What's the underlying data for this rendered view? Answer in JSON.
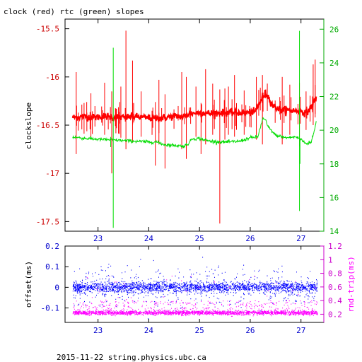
{
  "title": "clock (red) rtc (green) slopes",
  "footer": "2015-11-22 string.physics.ubc.ca",
  "colors": {
    "clock": "#ff0000",
    "rtc": "#00dd00",
    "offset": "#0000ff",
    "rndtrip": "#ff00ff",
    "axis_black": "#000000",
    "axis_red": "#cc0000",
    "axis_green": "#00aa00",
    "axis_blue": "#0000cc",
    "axis_magenta": "#cc00cc"
  },
  "chart_data": [
    {
      "type": "line",
      "title": "clock (red) rtc (green) slopes",
      "xlabel": "",
      "ylabel": "clockslope",
      "y2label": "",
      "xlim": [
        22.35,
        27.45
      ],
      "ylim": [
        -17.6,
        -15.4
      ],
      "y2lim": [
        14,
        26.6
      ],
      "x_ticks": [
        23,
        24,
        25,
        26,
        27
      ],
      "y_ticks": [
        -15.5,
        -16,
        -16.5,
        -17,
        -17.5
      ],
      "y2_ticks": [
        14,
        16,
        18,
        20,
        22,
        24,
        26
      ],
      "grid": false,
      "series": [
        {
          "axis": "left",
          "points": [
            [
              22.5,
              -16.42
            ],
            [
              22.7,
              -16.41
            ],
            [
              22.9,
              -16.42
            ],
            [
              23.1,
              -16.41
            ],
            [
              23.3,
              -16.42
            ],
            [
              23.5,
              -16.42
            ],
            [
              23.7,
              -16.41
            ],
            [
              23.9,
              -16.42
            ],
            [
              24.1,
              -16.43
            ],
            [
              24.3,
              -16.42
            ],
            [
              24.5,
              -16.41
            ],
            [
              24.7,
              -16.41
            ],
            [
              24.8,
              -16.38
            ],
            [
              25.0,
              -16.37
            ],
            [
              25.2,
              -16.38
            ],
            [
              25.4,
              -16.37
            ],
            [
              25.6,
              -16.37
            ],
            [
              25.8,
              -16.37
            ],
            [
              26.0,
              -16.37
            ],
            [
              26.1,
              -16.36
            ],
            [
              26.2,
              -16.25
            ],
            [
              26.3,
              -16.17
            ],
            [
              26.35,
              -16.2
            ],
            [
              26.45,
              -16.3
            ],
            [
              26.6,
              -16.34
            ],
            [
              26.8,
              -16.35
            ],
            [
              27.0,
              -16.35
            ],
            [
              27.1,
              -16.38
            ],
            [
              27.2,
              -16.31
            ],
            [
              27.3,
              -16.22
            ]
          ],
          "spikes": [
            [
              22.57,
              -15.95,
              -16.8
            ],
            [
              22.86,
              -16.17,
              -16.62
            ],
            [
              23.13,
              -16.06,
              -16.6
            ],
            [
              23.27,
              -16.15,
              -17.0
            ],
            [
              23.45,
              -16.1,
              -16.63
            ],
            [
              23.55,
              -15.52,
              -16.75
            ],
            [
              23.68,
              -15.83,
              -16.68
            ],
            [
              23.85,
              -16.15,
              -16.62
            ],
            [
              24.13,
              -16.26,
              -16.92
            ],
            [
              24.2,
              -16.03,
              -16.7
            ],
            [
              24.32,
              -16.18,
              -16.95
            ],
            [
              24.65,
              -15.95,
              -16.75
            ],
            [
              24.74,
              -16.0,
              -16.85
            ],
            [
              24.93,
              -16.1,
              -16.62
            ],
            [
              25.03,
              -16.27,
              -16.8
            ],
            [
              25.12,
              -15.92,
              -16.7
            ],
            [
              25.26,
              -16.07,
              -16.6
            ],
            [
              25.4,
              -16.13,
              -17.52
            ],
            [
              25.5,
              -16.12,
              -16.65
            ],
            [
              25.57,
              -16.1,
              -16.6
            ],
            [
              25.69,
              -15.98,
              -16.62
            ],
            [
              25.88,
              -16.14,
              -16.6
            ],
            [
              26.12,
              -16.0,
              -16.65
            ],
            [
              26.24,
              -15.98,
              -16.7
            ],
            [
              26.63,
              -16.0,
              -16.7
            ],
            [
              26.78,
              -16.08,
              -16.6
            ],
            [
              26.97,
              -16.06,
              -16.72
            ],
            [
              27.1,
              -16.15,
              -16.55
            ],
            [
              27.24,
              -15.87,
              -16.5
            ],
            [
              27.28,
              -15.82,
              -16.42
            ]
          ]
        },
        {
          "axis": "right",
          "points": [
            [
              22.5,
              19.6
            ],
            [
              22.8,
              19.5
            ],
            [
              23.1,
              19.45
            ],
            [
              23.4,
              19.4
            ],
            [
              23.7,
              19.35
            ],
            [
              24.0,
              19.3
            ],
            [
              24.15,
              19.3
            ],
            [
              24.3,
              19.15
            ],
            [
              24.5,
              19.1
            ],
            [
              24.7,
              19.05
            ],
            [
              24.8,
              19.25
            ],
            [
              24.85,
              19.5
            ],
            [
              25.0,
              19.5
            ],
            [
              25.2,
              19.35
            ],
            [
              25.4,
              19.3
            ],
            [
              25.6,
              19.3
            ],
            [
              25.8,
              19.35
            ],
            [
              26.0,
              19.55
            ],
            [
              26.15,
              19.6
            ],
            [
              26.2,
              20.2
            ],
            [
              26.25,
              20.7
            ],
            [
              26.3,
              20.6
            ],
            [
              26.35,
              20.2
            ],
            [
              26.5,
              19.7
            ],
            [
              26.7,
              19.55
            ],
            [
              26.9,
              19.6
            ],
            [
              27.0,
              19.45
            ],
            [
              27.1,
              19.2
            ],
            [
              27.2,
              19.3
            ],
            [
              27.25,
              19.8
            ],
            [
              27.3,
              20.5
            ]
          ],
          "spikes": [
            [
              23.3,
              14.2,
              24.9
            ],
            [
              26.97,
              15.2,
              25.9
            ],
            [
              26.98,
              18.0,
              19.5
            ],
            [
              23.25,
              19.0,
              19.6
            ]
          ]
        }
      ]
    },
    {
      "type": "scatter",
      "title": "",
      "xlabel": "",
      "ylabel": "offset(ms)",
      "y2label": "rnd-trip(ms)",
      "xlim": [
        22.35,
        27.45
      ],
      "ylim": [
        -0.17,
        0.2
      ],
      "y2lim": [
        0.08,
        1.2
      ],
      "x_ticks": [
        23,
        24,
        25,
        26,
        27
      ],
      "y_ticks": [
        0.2,
        0.1,
        0,
        -0.1
      ],
      "y2_ticks": [
        1.2,
        1,
        0.8,
        0.6,
        0.4,
        0.2
      ],
      "grid": false,
      "series": [
        {
          "axis": "left",
          "center": 0.0,
          "core": 0.012,
          "spread": 0.05
        },
        {
          "axis": "right",
          "center": 0.22,
          "core": 0.015,
          "spread": 0.18
        }
      ]
    }
  ]
}
